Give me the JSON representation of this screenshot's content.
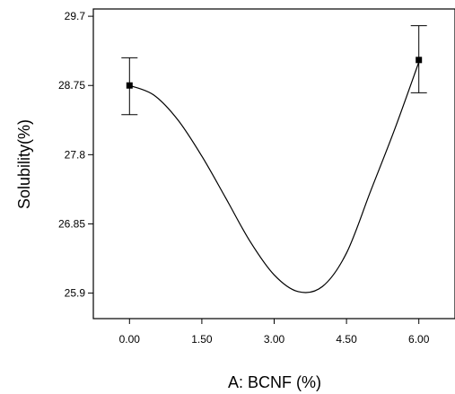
{
  "chart_data": {
    "type": "line",
    "title": "",
    "xlabel": "A: BCNF (%)",
    "ylabel": "Solubility(%)",
    "xlim": [
      -0.75,
      6.75
    ],
    "ylim": [
      25.55,
      29.8
    ],
    "x_ticks": [
      0,
      1.5,
      3,
      4.5,
      6
    ],
    "x_tick_labels": [
      "0.00",
      "1.50",
      "3.00",
      "4.50",
      "6.00"
    ],
    "y_ticks": [
      25.9,
      26.85,
      27.8,
      28.75,
      29.7
    ],
    "y_tick_labels": [
      "25.9",
      "26.85",
      "27.8",
      "28.75",
      "29.7"
    ],
    "grid": false,
    "series": [
      {
        "kind": "fitted-curve",
        "x": [
          0,
          0.5,
          1,
          1.5,
          2,
          2.5,
          3,
          3.5,
          4,
          4.5,
          5,
          5.5,
          6
        ],
        "y": [
          28.75,
          28.62,
          28.28,
          27.78,
          27.2,
          26.61,
          26.15,
          25.92,
          25.99,
          26.45,
          27.3,
          28.15,
          29.07
        ]
      },
      {
        "kind": "observed-points",
        "x": [
          0,
          6
        ],
        "y": [
          28.75,
          29.1
        ],
        "error_low": [
          28.35,
          28.65
        ],
        "error_high": [
          29.13,
          29.57
        ]
      }
    ]
  }
}
